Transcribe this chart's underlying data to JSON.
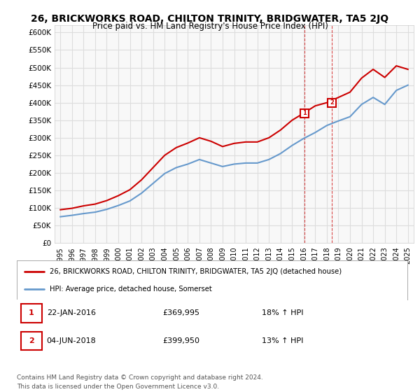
{
  "title": "26, BRICKWORKS ROAD, CHILTON TRINITY, BRIDGWATER, TA5 2JQ",
  "subtitle": "Price paid vs. HM Land Registry's House Price Index (HPI)",
  "ylabel": "",
  "xlabel": "",
  "ylim": [
    0,
    620000
  ],
  "yticks": [
    0,
    50000,
    100000,
    150000,
    200000,
    250000,
    300000,
    350000,
    400000,
    450000,
    500000,
    550000,
    600000
  ],
  "ytick_labels": [
    "£0",
    "£50K",
    "£100K",
    "£150K",
    "£200K",
    "£250K",
    "£300K",
    "£350K",
    "£400K",
    "£450K",
    "£500K",
    "£550K",
    "£600K"
  ],
  "xlim_start": 1994.5,
  "xlim_end": 2025.5,
  "xticks": [
    1995,
    1996,
    1997,
    1998,
    1999,
    2000,
    2001,
    2002,
    2003,
    2004,
    2005,
    2006,
    2007,
    2008,
    2009,
    2010,
    2011,
    2012,
    2013,
    2014,
    2015,
    2016,
    2017,
    2018,
    2019,
    2020,
    2021,
    2022,
    2023,
    2024,
    2025
  ],
  "hpi_years": [
    1995,
    1996,
    1997,
    1998,
    1999,
    2000,
    2001,
    2002,
    2003,
    2004,
    2005,
    2006,
    2007,
    2008,
    2009,
    2010,
    2011,
    2012,
    2013,
    2014,
    2015,
    2016,
    2017,
    2018,
    2019,
    2020,
    2021,
    2022,
    2023,
    2024,
    2025
  ],
  "hpi_values": [
    75000,
    79000,
    84000,
    88000,
    96000,
    107000,
    120000,
    142000,
    170000,
    198000,
    215000,
    225000,
    238000,
    228000,
    218000,
    225000,
    228000,
    228000,
    238000,
    255000,
    278000,
    298000,
    315000,
    335000,
    348000,
    360000,
    395000,
    415000,
    395000,
    435000,
    450000
  ],
  "property_years": [
    1995,
    1996,
    1997,
    1998,
    1999,
    2000,
    2001,
    2002,
    2003,
    2004,
    2005,
    2006,
    2007,
    2008,
    2009,
    2010,
    2011,
    2012,
    2013,
    2014,
    2015,
    2016,
    2017,
    2018,
    2019,
    2020,
    2021,
    2022,
    2023,
    2024,
    2025
  ],
  "property_values": [
    95000,
    99000,
    106000,
    111000,
    121000,
    135000,
    152000,
    180000,
    215000,
    250000,
    272000,
    285000,
    300000,
    290000,
    275000,
    284000,
    288000,
    288000,
    300000,
    322000,
    350000,
    370000,
    391000,
    400000,
    415000,
    430000,
    470000,
    495000,
    472000,
    505000,
    495000
  ],
  "sale1_x": 2016.05,
  "sale1_y": 369995,
  "sale2_x": 2018.43,
  "sale2_y": 399950,
  "sale1_label": "1",
  "sale2_label": "2",
  "sale1_date": "22-JAN-2016",
  "sale1_price": "£369,995",
  "sale1_hpi": "18% ↑ HPI",
  "sale2_date": "04-JUN-2018",
  "sale2_price": "£399,950",
  "sale2_hpi": "13% ↑ HPI",
  "red_color": "#cc0000",
  "blue_color": "#6699cc",
  "marker_box_color": "#cc0000",
  "grid_color": "#dddddd",
  "bg_color": "#ffffff",
  "plot_bg_color": "#f8f8f8",
  "legend_label_red": "26, BRICKWORKS ROAD, CHILTON TRINITY, BRIDGWATER, TA5 2JQ (detached house)",
  "legend_label_blue": "HPI: Average price, detached house, Somerset",
  "footer_line1": "Contains HM Land Registry data © Crown copyright and database right 2024.",
  "footer_line2": "This data is licensed under the Open Government Licence v3.0.",
  "vline1_x": 2016.05,
  "vline2_x": 2018.43
}
